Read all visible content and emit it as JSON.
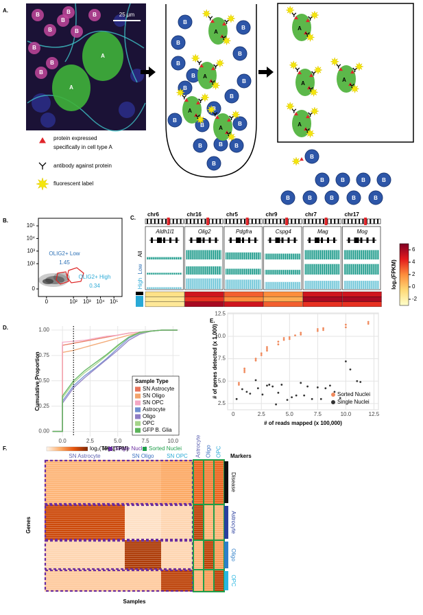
{
  "panel_a": {
    "panel": "A.",
    "scale_bar": "25 µm",
    "cell_a": "A",
    "cell_b": "B",
    "legend": {
      "protein": [
        "protein expressed",
        "specifically in cell type A"
      ],
      "antibody": "antibody against protein",
      "label": "fluorescent label"
    }
  },
  "chart_data": [
    {
      "type": "flow",
      "panel": "B.",
      "xlim": [
        -0.6,
        5.6
      ],
      "ylim": [
        -0.6,
        5.6
      ],
      "xticks": [
        {
          "value": 0,
          "label": "0"
        },
        {
          "value": 2,
          "label": "10²"
        },
        {
          "value": 3,
          "label": "10³"
        },
        {
          "value": 4,
          "label": "10⁴"
        },
        {
          "value": 5,
          "label": "10⁵"
        }
      ],
      "yticks": [
        {
          "value": 0,
          "label": "0"
        },
        {
          "value": 2,
          "label": "10²"
        },
        {
          "value": 3,
          "label": "10³"
        },
        {
          "value": 4,
          "label": "10⁴"
        },
        {
          "value": 5,
          "label": "10⁵"
        }
      ],
      "gates": [
        {
          "name": "OLIG2+ Low",
          "value": 1.45,
          "color": "#2a6fb5"
        },
        {
          "name": "OLIG2+ High",
          "value": 0.34,
          "color": "#29a9d6"
        }
      ]
    },
    {
      "type": "heatmap",
      "panel": "C.",
      "chromosomes": [
        "chr6",
        "chr16",
        "chr5",
        "chr9",
        "chr7",
        "chr17"
      ],
      "genes": [
        "Aldh1l1",
        "Olig2",
        "Pdgfra",
        "Cspg4",
        "Mag",
        "Mog"
      ],
      "rows": [
        {
          "name": "All",
          "color": "#000000"
        },
        {
          "name": "Low",
          "color": "#2a6fb5"
        },
        {
          "name": "High",
          "color": "#29a9d6"
        }
      ],
      "values": [
        [
          -1,
          5,
          3,
          2,
          5,
          5
        ],
        [
          -1.5,
          4,
          2,
          1,
          6,
          6
        ],
        [
          -1.5,
          6,
          5,
          3,
          4,
          4
        ]
      ],
      "colorbar": {
        "label": "log₂(FPKM)",
        "ticks": [
          6,
          4,
          2,
          0,
          -2
        ],
        "lim": [
          -3,
          7
        ],
        "colors": [
          "#ffffcc",
          "#fed976",
          "#fd8d3c",
          "#e31a1c",
          "#800026"
        ]
      }
    },
    {
      "type": "line",
      "panel": "D.",
      "xlabel": "log₂(TPM)",
      "ylabel": "Cumulative Proportion",
      "legend_title": "Sample Type",
      "grid": true,
      "vline": 1,
      "xlim": [
        -1,
        10.6
      ],
      "ylim": [
        -0.05,
        1.04
      ],
      "xticks": [
        {
          "value": 0,
          "label": "0.0"
        },
        {
          "value": 2.5,
          "label": "2.5"
        },
        {
          "value": 5,
          "label": "5.0"
        },
        {
          "value": 7.5,
          "label": "7.5"
        },
        {
          "value": 10,
          "label": "10.0"
        }
      ],
      "yticks": [
        {
          "value": 0,
          "label": "0.00"
        },
        {
          "value": 0.25,
          "label": "0.25"
        },
        {
          "value": 0.5,
          "label": "0.50"
        },
        {
          "value": 0.75,
          "label": "0.75"
        },
        {
          "value": 1,
          "label": "1.00"
        }
      ],
      "x": [
        -0.9,
        0,
        0,
        1,
        2,
        3,
        4,
        5,
        6,
        7,
        8,
        9,
        10.4
      ],
      "series": [
        {
          "name": "SN Astrocyte",
          "color": "#e8735a",
          "values": [
            0,
            0,
            0.85,
            0.87,
            0.89,
            0.91,
            0.93,
            0.95,
            0.97,
            0.98,
            0.99,
            1,
            1
          ]
        },
        {
          "name": "SN Oligo",
          "color": "#f2a36b",
          "values": [
            0,
            0,
            0.78,
            0.8,
            0.83,
            0.86,
            0.89,
            0.92,
            0.95,
            0.97,
            0.99,
            1,
            1
          ]
        },
        {
          "name": "SN OPC",
          "color": "#f4a7c4",
          "values": [
            0,
            0,
            0.88,
            0.89,
            0.9,
            0.92,
            0.94,
            0.95,
            0.97,
            0.98,
            0.99,
            1,
            1
          ]
        },
        {
          "name": "Astrocyte",
          "color": "#6f8fd0",
          "values": [
            0,
            0,
            0.3,
            0.45,
            0.55,
            0.63,
            0.72,
            0.82,
            0.92,
            0.97,
            0.99,
            1,
            1
          ]
        },
        {
          "name": "Oligo",
          "color": "#8e7cc3",
          "values": [
            0,
            0,
            0.28,
            0.43,
            0.53,
            0.62,
            0.71,
            0.8,
            0.9,
            0.96,
            0.99,
            1,
            1
          ]
        },
        {
          "name": "OPC",
          "color": "#a5d48a",
          "values": [
            0,
            0,
            0.33,
            0.48,
            0.58,
            0.66,
            0.75,
            0.84,
            0.93,
            0.97,
            0.99,
            1,
            1
          ]
        },
        {
          "name": "GFP B. Glia",
          "color": "#5bb35a",
          "values": [
            0,
            0,
            0.35,
            0.5,
            0.6,
            0.68,
            0.76,
            0.85,
            0.93,
            0.98,
            0.99,
            1,
            1
          ]
        }
      ]
    },
    {
      "type": "scatter",
      "panel": "E.",
      "xlabel": "# of reads mapped (x 100,000)",
      "ylabel": "# of genes detected (x 1,000)",
      "grid": true,
      "legend": "bottom-right",
      "xlim": [
        -0.5,
        12.9
      ],
      "ylim": [
        1.8,
        12.6
      ],
      "xticks": [
        {
          "value": 0,
          "label": "0"
        },
        {
          "value": 2.5,
          "label": "2.5"
        },
        {
          "value": 5,
          "label": "5.0"
        },
        {
          "value": 7.5,
          "label": "7.5"
        },
        {
          "value": 10,
          "label": "10.0"
        },
        {
          "value": 12.5,
          "label": "12.5"
        }
      ],
      "yticks": [
        {
          "value": 2.5,
          "label": "2.5"
        },
        {
          "value": 5,
          "label": "5.0"
        },
        {
          "value": 7.5,
          "label": "7.5"
        },
        {
          "value": 10,
          "label": "10.0"
        },
        {
          "value": 12.5,
          "label": "12.5"
        }
      ],
      "series": [
        {
          "name": "Sorted Nuclei",
          "color": "#f08a5d",
          "x": [
            0.5,
            0.5,
            1,
            1,
            1,
            2,
            2,
            2.5,
            2.5,
            3,
            3,
            3,
            4,
            4,
            4.5,
            4.5,
            5,
            5,
            5.5,
            6,
            6,
            7.5,
            7.5,
            8,
            8,
            10,
            10,
            12,
            12
          ],
          "values": [
            4.6,
            4.8,
            6.0,
            6.2,
            6.4,
            7.3,
            7.5,
            7.9,
            8.1,
            8.4,
            8.6,
            8.8,
            9.1,
            9.4,
            9.6,
            9.8,
            9.7,
            9.9,
            10.1,
            10.2,
            10.4,
            10.6,
            10.8,
            10.7,
            10.9,
            11.0,
            11.3,
            11.4,
            11.6
          ]
        },
        {
          "name": "Single Nuclei",
          "color": "#333333",
          "x": [
            0.3,
            0.8,
            1.2,
            1.5,
            2,
            2.2,
            2.6,
            3,
            3.2,
            3.5,
            3.8,
            4,
            4.3,
            4.8,
            5.2,
            5.6,
            6,
            6.3,
            6.6,
            7,
            7.5,
            7.8,
            8.2,
            8.6,
            9,
            9.5,
            10,
            10.4,
            11,
            11.3
          ],
          "values": [
            3.0,
            4.1,
            3.8,
            3.6,
            5.1,
            4.2,
            3.5,
            4.5,
            4.6,
            4.4,
            2.4,
            3.7,
            4.6,
            2.9,
            3.2,
            3.4,
            4.8,
            3.4,
            4.4,
            3.0,
            4.3,
            3.0,
            4.2,
            4.5,
            3.8,
            3.1,
            7.2,
            6.3,
            5.0,
            4.9
          ]
        }
      ]
    },
    {
      "type": "heatmap",
      "panel": "F.",
      "colorbar_label": "log₂(TPM)",
      "markers_title": "Markers",
      "xlabel": "Samples",
      "ylabel": "Genes",
      "groups": [
        {
          "name": "Single Nuclei",
          "color": "#6a2d9f"
        },
        {
          "name": "Sorted Nuclei",
          "color": "#1e9e4a"
        }
      ],
      "columns": [
        {
          "name": "SN Astrocyte",
          "color": "#5a5fb0"
        },
        {
          "name": "SN Oligo",
          "color": "#3a6fc0"
        },
        {
          "name": "SN OPC",
          "color": "#29a9d6"
        },
        {
          "name": "Astrocyte",
          "color": "#5a5fb0"
        },
        {
          "name": "Oligo",
          "color": "#3a6fc0"
        },
        {
          "name": "OPC",
          "color": "#29a9d6"
        }
      ],
      "rows": [
        {
          "name": "Disease",
          "color": "#111111"
        },
        {
          "name": "Astrocyte",
          "color": "#2b3f9e"
        },
        {
          "name": "Oligo",
          "color": "#2f7fc8"
        },
        {
          "name": "OPC",
          "color": "#29b6e0"
        }
      ],
      "colors": [
        "#fff5eb",
        "#fdae6b",
        "#e6550d",
        "#7f2704"
      ],
      "values": [
        [
          0.3,
          0.3,
          0.35,
          0.6,
          0.5,
          0.6
        ],
        [
          0.75,
          0.1,
          0.15,
          0.8,
          0.3,
          0.3
        ],
        [
          0.15,
          0.85,
          0.15,
          0.3,
          0.8,
          0.4
        ],
        [
          0.2,
          0.2,
          0.8,
          0.3,
          0.4,
          0.8
        ]
      ]
    }
  ]
}
